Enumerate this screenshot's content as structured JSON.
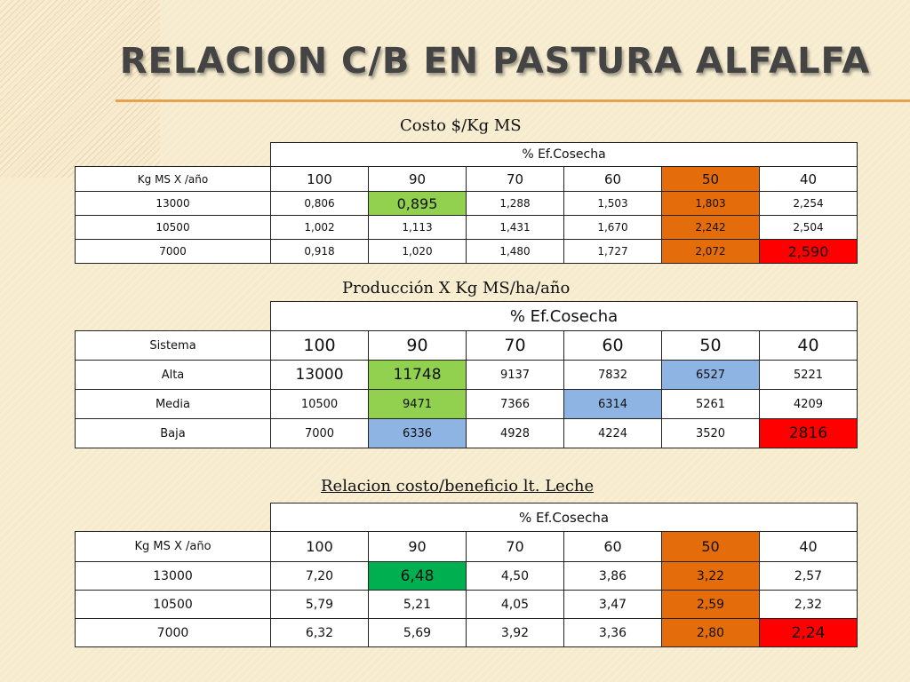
{
  "title": "RELACION C/B EN PASTURA ALFALFA",
  "colors": {
    "background": "#f6ebcd",
    "accent_rule": "#e7a24e",
    "green": "#92d050",
    "dark_green": "#00b050",
    "orange": "#e46c0a",
    "red": "#ff0000",
    "blue": "#8db4e2"
  },
  "tables": [
    {
      "caption": "Costo $/Kg MS",
      "header": "% Ef.Cosecha",
      "row_label": "Kg MS X /año",
      "columns": [
        "100",
        "90",
        "70",
        "60",
        "50",
        "40"
      ],
      "rows": [
        {
          "label": "13000",
          "values": [
            "0,806",
            "0,895",
            "1,288",
            "1,503",
            "1,803",
            "2,254"
          ]
        },
        {
          "label": "10500",
          "values": [
            "1,002",
            "1,113",
            "1,431",
            "1,670",
            "2,242",
            "2,504"
          ]
        },
        {
          "label": "7000",
          "values": [
            "0,918",
            "1,020",
            "1,480",
            "1,727",
            "2,072",
            "2,590"
          ]
        }
      ]
    },
    {
      "caption": "Producción X Kg MS/ha/año",
      "header": "% Ef.Cosecha",
      "row_label": "Sistema",
      "columns": [
        "100",
        "90",
        "70",
        "60",
        "50",
        "40"
      ],
      "rows": [
        {
          "label": "Alta",
          "values": [
            "13000",
            "11748",
            "9137",
            "7832",
            "6527",
            "5221"
          ]
        },
        {
          "label": "Media",
          "values": [
            "10500",
            "9471",
            "7366",
            "6314",
            "5261",
            "4209"
          ]
        },
        {
          "label": "Baja",
          "values": [
            "7000",
            "6336",
            "4928",
            "4224",
            "3520",
            "2816"
          ]
        }
      ]
    },
    {
      "caption": "Relacion costo/beneficio lt. Leche",
      "header": "% Ef.Cosecha",
      "row_label": "Kg MS X /año",
      "columns": [
        "100",
        "90",
        "70",
        "60",
        "50",
        "40"
      ],
      "rows": [
        {
          "label": "13000",
          "values": [
            "7,20",
            "6,48",
            "4,50",
            "3,86",
            "3,22",
            "2,57"
          ]
        },
        {
          "label": "10500",
          "values": [
            "5,79",
            "5,21",
            "4,05",
            "3,47",
            "2,59",
            "2,32"
          ]
        },
        {
          "label": "7000",
          "values": [
            "6,32",
            "5,69",
            "3,92",
            "3,36",
            "2,80",
            "2,24"
          ]
        }
      ]
    }
  ]
}
